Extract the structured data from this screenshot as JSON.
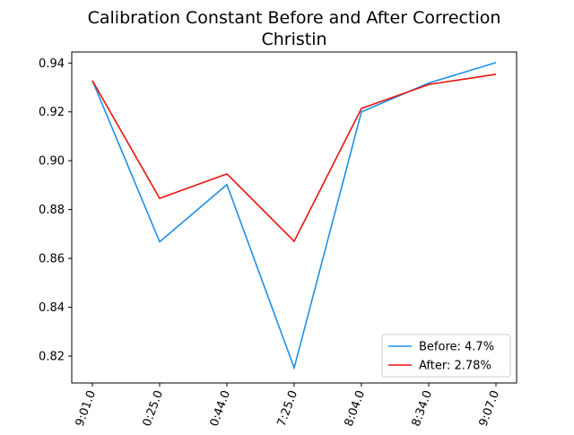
{
  "chart_data": {
    "type": "line",
    "title": "Calibration Constant Before and After Correction",
    "subtitle": "Christin",
    "xlabel": "",
    "ylabel": "",
    "categories": [
      "9:01.0",
      "0:25.0",
      "0:44.0",
      "7:25.0",
      "8:04.0",
      "8:34.0",
      "9:07.0"
    ],
    "ylim": [
      0.809,
      0.9445
    ],
    "yticks": [
      0.82,
      0.84,
      0.86,
      0.88,
      0.9,
      0.92,
      0.94
    ],
    "ytick_labels": [
      "0.82",
      "0.84",
      "0.86",
      "0.88",
      "0.90",
      "0.92",
      "0.94"
    ],
    "grid": false,
    "legend_position": "lower-right",
    "series": [
      {
        "name": "Before: 4.7%",
        "color": "#1f8fe8",
        "values": [
          0.9328,
          0.8668,
          0.8902,
          0.8152,
          0.92,
          0.9318,
          0.9402
        ]
      },
      {
        "name": "After: 2.78%",
        "color": "#e8120c",
        "values": [
          0.9328,
          0.8846,
          0.8946,
          0.867,
          0.9214,
          0.9312,
          0.9354
        ]
      }
    ]
  }
}
